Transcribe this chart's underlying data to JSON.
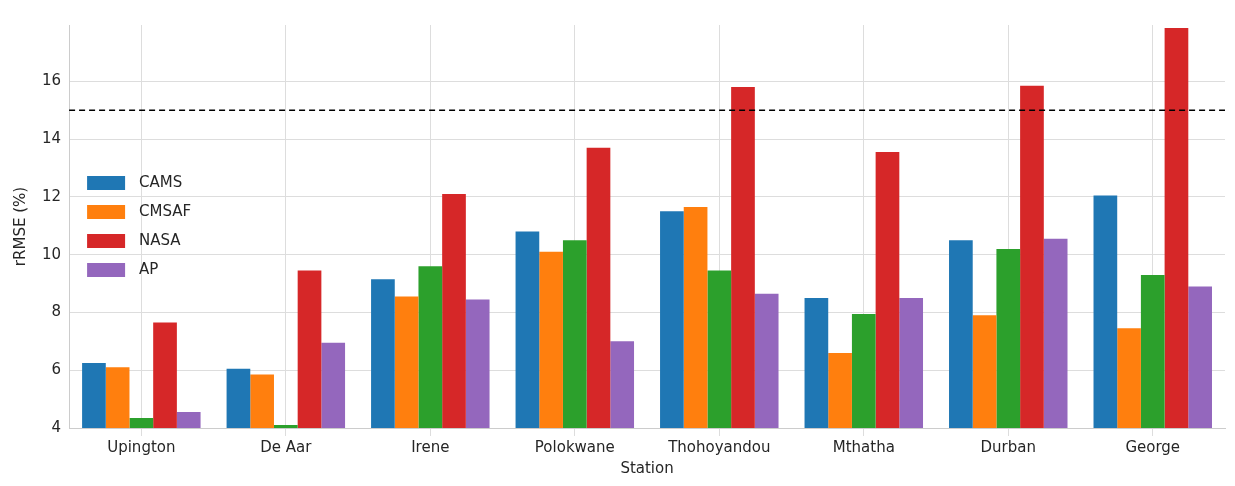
{
  "chart_data": {
    "type": "bar",
    "xlabel": "Station",
    "ylabel": "rRMSE (%)",
    "categories": [
      "Upington",
      "De Aar",
      "Irene",
      "Polokwane",
      "Thohoyandou",
      "Mthatha",
      "Durban",
      "George"
    ],
    "series": [
      {
        "name": "CAMS",
        "color": "#1f77b4",
        "values": [
          6.25,
          6.05,
          9.15,
          10.8,
          11.5,
          8.5,
          10.5,
          12.05
        ]
      },
      {
        "name": "CMSAF",
        "color": "#ff7f0e",
        "values": [
          6.1,
          5.85,
          8.55,
          10.1,
          11.65,
          6.6,
          7.9,
          7.45
        ]
      },
      {
        "color": "#2ca02c",
        "values": [
          4.35,
          4.1,
          9.6,
          10.5,
          9.45,
          7.95,
          10.2,
          9.3
        ]
      },
      {
        "name": "NASA",
        "color": "#d62728",
        "values": [
          7.65,
          9.45,
          12.1,
          13.7,
          15.8,
          13.55,
          15.85,
          17.85
        ]
      },
      {
        "name": "AP",
        "color": "#9467bd",
        "values": [
          4.55,
          6.95,
          8.45,
          7.0,
          8.65,
          8.5,
          10.55,
          8.9
        ]
      }
    ],
    "ylim": [
      4,
      17.95
    ],
    "yticks": [
      4,
      6,
      8,
      10,
      12,
      14,
      16
    ],
    "grid": true,
    "legend": "center left",
    "ref_lines": [
      {
        "axis": "y",
        "value": 15,
        "color": "#000000",
        "line_style": "dashed"
      }
    ]
  }
}
